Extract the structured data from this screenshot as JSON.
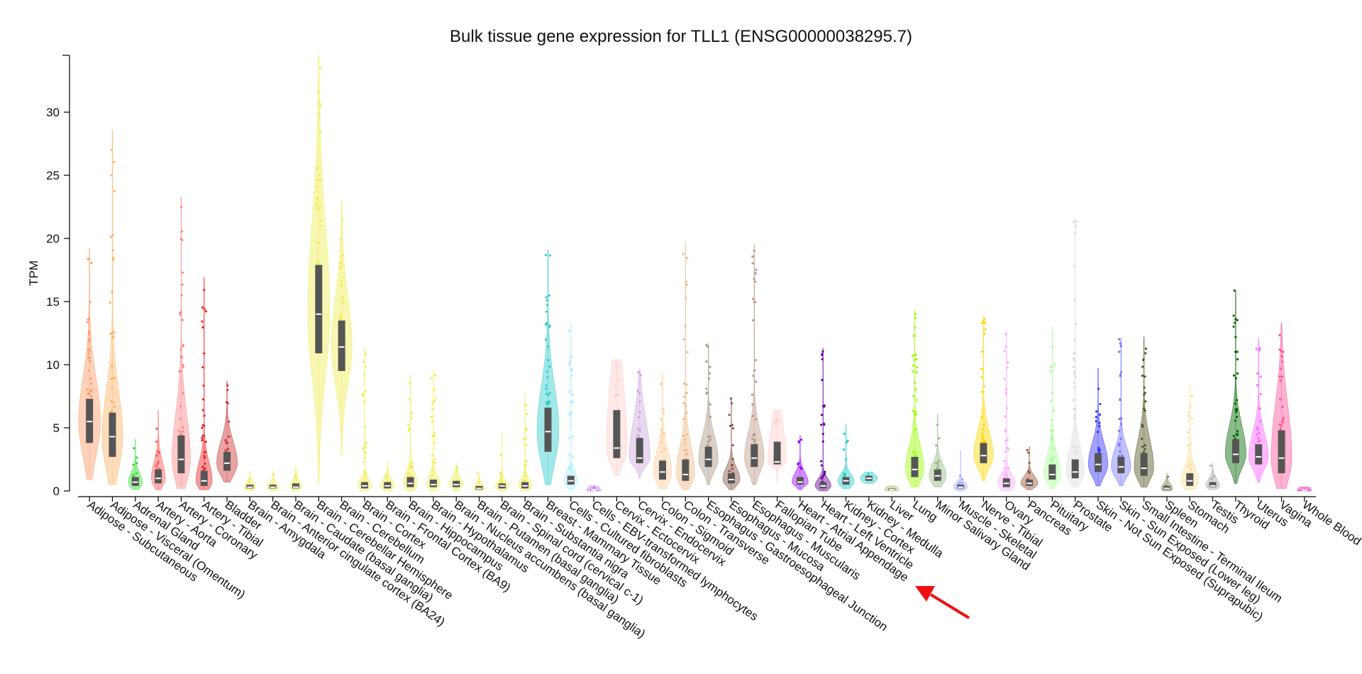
{
  "chart_data": {
    "type": "violin",
    "title": "Bulk tissue gene expression for TLL1 (ENSG00000038295.7)",
    "ylabel": "TPM",
    "xlabel": "",
    "ylim": [
      0,
      34.5
    ],
    "yticks": [
      0,
      5,
      10,
      15,
      20,
      25,
      30
    ],
    "grid": false,
    "legend": "none",
    "series": [
      {
        "name": "Adipose - Subcutaneous",
        "color": "#FF9966",
        "median": 5.5,
        "q1": 3.8,
        "q3": 7.3,
        "min": 0.9,
        "max": 19.2,
        "width": 0.95
      },
      {
        "name": "Adipose - Visceral (Omentum)",
        "color": "#FFB366",
        "median": 4.3,
        "q1": 2.7,
        "q3": 6.2,
        "min": 0.5,
        "max": 28.6,
        "width": 0.9
      },
      {
        "name": "Adrenal Gland",
        "color": "#33DD33",
        "median": 0.7,
        "q1": 0.4,
        "q3": 1.1,
        "min": 0.1,
        "max": 4.1,
        "width": 0.6
      },
      {
        "name": "Artery - Aorta",
        "color": "#FF5555",
        "median": 1.0,
        "q1": 0.6,
        "q3": 1.7,
        "min": 0.1,
        "max": 6.4,
        "width": 0.6
      },
      {
        "name": "Artery - Coronary",
        "color": "#FF8888",
        "median": 2.5,
        "q1": 1.4,
        "q3": 4.4,
        "min": 0.2,
        "max": 23.3,
        "width": 0.8
      },
      {
        "name": "Artery - Tibial",
        "color": "#EE2222",
        "median": 0.8,
        "q1": 0.4,
        "q3": 1.6,
        "min": 0.1,
        "max": 16.9,
        "width": 0.7
      },
      {
        "name": "Bladder",
        "color": "#CC3333",
        "median": 2.2,
        "q1": 1.6,
        "q3": 3.1,
        "min": 0.7,
        "max": 8.7,
        "width": 0.9
      },
      {
        "name": "Brain - Amygdala",
        "color": "#EEEE55",
        "median": 0.3,
        "q1": 0.2,
        "q3": 0.5,
        "min": 0.0,
        "max": 1.6,
        "width": 0.5
      },
      {
        "name": "Brain - Anterior cingulate cortex (BA24)",
        "color": "#EEEE55",
        "median": 0.3,
        "q1": 0.2,
        "q3": 0.5,
        "min": 0.0,
        "max": 1.6,
        "width": 0.5
      },
      {
        "name": "Brain - Caudate (basal ganglia)",
        "color": "#EEEE55",
        "median": 0.3,
        "q1": 0.2,
        "q3": 0.6,
        "min": 0.0,
        "max": 2.0,
        "width": 0.5
      },
      {
        "name": "Brain - Cerebellar Hemisphere",
        "color": "#EEEE55",
        "median": 14.0,
        "q1": 10.9,
        "q3": 17.9,
        "min": 0.6,
        "max": 34.5,
        "width": 0.95
      },
      {
        "name": "Brain - Cerebellum",
        "color": "#EEEE55",
        "median": 11.4,
        "q1": 9.5,
        "q3": 13.5,
        "min": 2.9,
        "max": 23.0,
        "width": 0.9
      },
      {
        "name": "Brain - Cortex",
        "color": "#EEEE55",
        "median": 0.4,
        "q1": 0.2,
        "q3": 0.7,
        "min": 0.0,
        "max": 11.4,
        "width": 0.6
      },
      {
        "name": "Brain - Frontal Cortex (BA9)",
        "color": "#EEEE55",
        "median": 0.4,
        "q1": 0.2,
        "q3": 0.7,
        "min": 0.0,
        "max": 2.4,
        "width": 0.6
      },
      {
        "name": "Brain - Hippocampus",
        "color": "#EEEE55",
        "median": 0.6,
        "q1": 0.3,
        "q3": 1.1,
        "min": 0.0,
        "max": 9.2,
        "width": 0.6
      },
      {
        "name": "Brain - Hypothalamus",
        "color": "#EEEE55",
        "median": 0.5,
        "q1": 0.3,
        "q3": 0.9,
        "min": 0.0,
        "max": 9.6,
        "width": 0.6
      },
      {
        "name": "Brain - Nucleus accumbens (basal ganglia)",
        "color": "#EEEE55",
        "median": 0.5,
        "q1": 0.3,
        "q3": 0.8,
        "min": 0.0,
        "max": 2.2,
        "width": 0.6
      },
      {
        "name": "Brain - Putamen (basal ganglia)",
        "color": "#EEEE55",
        "median": 0.2,
        "q1": 0.1,
        "q3": 0.4,
        "min": 0.0,
        "max": 1.4,
        "width": 0.5
      },
      {
        "name": "Brain - Spinal cord (cervical c-1)",
        "color": "#EEEE55",
        "median": 0.4,
        "q1": 0.2,
        "q3": 0.6,
        "min": 0.0,
        "max": 4.7,
        "width": 0.6
      },
      {
        "name": "Brain - Substantia nigra",
        "color": "#EEEE55",
        "median": 0.4,
        "q1": 0.2,
        "q3": 0.7,
        "min": 0.0,
        "max": 7.8,
        "width": 0.6
      },
      {
        "name": "Breast - Mammary Tissue",
        "color": "#33CCCC",
        "median": 4.7,
        "q1": 3.1,
        "q3": 6.6,
        "min": 0.5,
        "max": 19.1,
        "width": 0.95
      },
      {
        "name": "Cells - Cultured fibroblasts",
        "color": "#AAEEFF",
        "median": 0.8,
        "q1": 0.5,
        "q3": 1.2,
        "min": 0.1,
        "max": 13.2,
        "width": 0.6
      },
      {
        "name": "Cells - EBV-transformed lymphocytes",
        "color": "#CC66FF",
        "median": 0.05,
        "q1": 0.02,
        "q3": 0.1,
        "min": 0.0,
        "max": 0.4,
        "width": 0.6
      },
      {
        "name": "Cervix - Ectocervix",
        "color": "#FFCCCC",
        "median": 3.4,
        "q1": 2.6,
        "q3": 6.4,
        "min": 1.2,
        "max": 10.4,
        "width": 0.9
      },
      {
        "name": "Cervix - Endocervix",
        "color": "#CCAADD",
        "median": 2.6,
        "q1": 2.2,
        "q3": 4.2,
        "min": 1.0,
        "max": 9.6,
        "width": 0.9
      },
      {
        "name": "Colon - Sigmoid",
        "color": "#FFCC99",
        "median": 1.5,
        "q1": 0.9,
        "q3": 2.4,
        "min": 0.2,
        "max": 9.4,
        "width": 0.8
      },
      {
        "name": "Colon - Transverse",
        "color": "#EEBB88",
        "median": 1.3,
        "q1": 0.8,
        "q3": 2.5,
        "min": 0.1,
        "max": 19.7,
        "width": 0.8
      },
      {
        "name": "Esophagus - Gastroesophageal Junction",
        "color": "#AA9988",
        "median": 2.5,
        "q1": 1.9,
        "q3": 3.5,
        "min": 0.5,
        "max": 11.7,
        "width": 0.85
      },
      {
        "name": "Esophagus - Mucosa",
        "color": "#885544",
        "median": 0.9,
        "q1": 0.6,
        "q3": 1.4,
        "min": 0.1,
        "max": 7.4,
        "width": 0.75
      },
      {
        "name": "Esophagus - Muscularis",
        "color": "#BB9988",
        "median": 2.6,
        "q1": 1.9,
        "q3": 3.7,
        "min": 0.5,
        "max": 19.5,
        "width": 0.85
      },
      {
        "name": "Fallopian Tube",
        "color": "#FFCCCC",
        "median": 2.3,
        "q1": 2.1,
        "q3": 3.9,
        "min": 0.7,
        "max": 6.4,
        "width": 0.8
      },
      {
        "name": "Heart - Atrial Appendage",
        "color": "#9900FF",
        "median": 0.7,
        "q1": 0.5,
        "q3": 1.1,
        "min": 0.1,
        "max": 4.4,
        "width": 0.7
      },
      {
        "name": "Heart - Left Ventricle",
        "color": "#660099",
        "median": 0.4,
        "q1": 0.2,
        "q3": 0.7,
        "min": 0.0,
        "max": 11.3,
        "width": 0.7
      },
      {
        "name": "Kidney - Cortex",
        "color": "#22CCCC",
        "median": 0.8,
        "q1": 0.5,
        "q3": 1.1,
        "min": 0.2,
        "max": 5.3,
        "width": 0.7
      },
      {
        "name": "Kidney - Medulla",
        "color": "#22CCCC",
        "median": 1.0,
        "q1": 0.8,
        "q3": 1.2,
        "min": 0.6,
        "max": 1.5,
        "width": 0.75
      },
      {
        "name": "Liver",
        "color": "#AABB66",
        "median": 0.1,
        "q1": 0.05,
        "q3": 0.2,
        "min": 0.0,
        "max": 0.4,
        "width": 0.6
      },
      {
        "name": "Lung",
        "color": "#99FF00",
        "median": 1.7,
        "q1": 1.1,
        "q3": 2.7,
        "min": 0.3,
        "max": 14.3,
        "width": 0.8
      },
      {
        "name": "Minor Salivary Gland",
        "color": "#99BB88",
        "median": 1.2,
        "q1": 0.8,
        "q3": 1.7,
        "min": 0.3,
        "max": 6.1,
        "width": 0.75
      },
      {
        "name": "Muscle - Skeletal",
        "color": "#AAAAFF",
        "median": 0.3,
        "q1": 0.2,
        "q3": 0.5,
        "min": 0.0,
        "max": 3.2,
        "width": 0.6
      },
      {
        "name": "Nerve - Tibial",
        "color": "#FFD700",
        "median": 2.8,
        "q1": 2.2,
        "q3": 3.8,
        "min": 0.8,
        "max": 13.8,
        "width": 0.85
      },
      {
        "name": "Ovary",
        "color": "#FFAAFF",
        "median": 0.6,
        "q1": 0.3,
        "q3": 1.0,
        "min": 0.0,
        "max": 12.7,
        "width": 0.75
      },
      {
        "name": "Pancreas",
        "color": "#995533",
        "median": 0.6,
        "q1": 0.4,
        "q3": 0.9,
        "min": 0.1,
        "max": 3.5,
        "width": 0.75
      },
      {
        "name": "Pituitary",
        "color": "#AAFF99",
        "median": 1.3,
        "q1": 0.9,
        "q3": 2.1,
        "min": 0.2,
        "max": 13.0,
        "width": 0.75
      },
      {
        "name": "Prostate",
        "color": "#DDDDDD",
        "median": 1.5,
        "q1": 1.0,
        "q3": 2.5,
        "min": 0.3,
        "max": 21.6,
        "width": 0.8
      },
      {
        "name": "Skin - Not Sun Exposed (Suprapubic)",
        "color": "#3333FF",
        "median": 2.1,
        "q1": 1.5,
        "q3": 3.0,
        "min": 0.4,
        "max": 9.7,
        "width": 0.85
      },
      {
        "name": "Skin - Sun Exposed (Lower leg)",
        "color": "#7777FF",
        "median": 1.9,
        "q1": 1.4,
        "q3": 2.7,
        "min": 0.4,
        "max": 12.1,
        "width": 0.85
      },
      {
        "name": "Small Intestine - Terminal Ileum",
        "color": "#555522",
        "median": 1.8,
        "q1": 1.2,
        "q3": 3.0,
        "min": 0.3,
        "max": 12.2,
        "width": 0.85
      },
      {
        "name": "Spleen",
        "color": "#778855",
        "median": 0.2,
        "q1": 0.1,
        "q3": 0.4,
        "min": 0.0,
        "max": 1.4,
        "width": 0.5
      },
      {
        "name": "Stomach",
        "color": "#FFDD99",
        "median": 0.8,
        "q1": 0.4,
        "q3": 1.4,
        "min": 0.1,
        "max": 8.5,
        "width": 0.75
      },
      {
        "name": "Testis",
        "color": "#AAAAAA",
        "median": 0.4,
        "q1": 0.3,
        "q3": 0.7,
        "min": 0.1,
        "max": 2.2,
        "width": 0.6
      },
      {
        "name": "Thyroid",
        "color": "#006600",
        "median": 2.9,
        "q1": 2.2,
        "q3": 4.1,
        "min": 0.6,
        "max": 15.9,
        "width": 0.9
      },
      {
        "name": "Uterus",
        "color": "#FF66FF",
        "median": 2.7,
        "q1": 2.1,
        "q3": 3.7,
        "min": 0.7,
        "max": 12.1,
        "width": 0.85
      },
      {
        "name": "Vagina",
        "color": "#FF5599",
        "median": 2.6,
        "q1": 1.4,
        "q3": 4.8,
        "min": 0.2,
        "max": 13.3,
        "width": 0.9
      },
      {
        "name": "Whole Blood",
        "color": "#FF00BB",
        "median": 0.05,
        "q1": 0.02,
        "q3": 0.1,
        "min": 0.0,
        "max": 0.3,
        "width": 0.6
      }
    ]
  },
  "annotation": {
    "type": "arrow",
    "color": "#EE1111",
    "points_to": "Lung"
  }
}
